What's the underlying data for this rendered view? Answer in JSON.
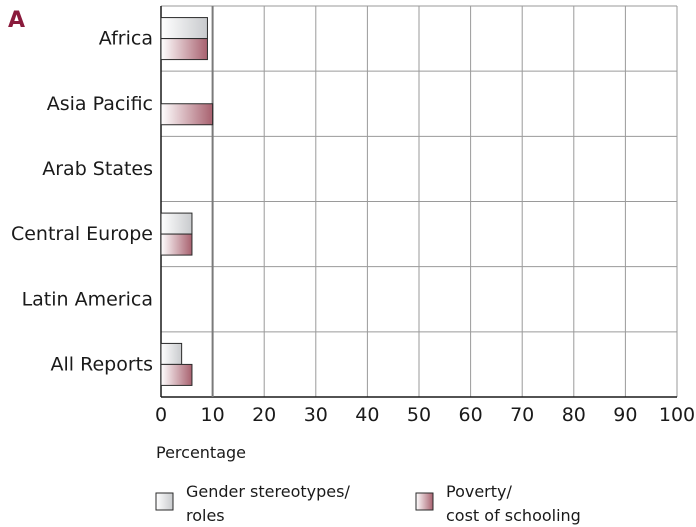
{
  "panel_label": "A",
  "chart_data": {
    "type": "bar",
    "orientation": "horizontal",
    "categories": [
      "Africa",
      "Asia Pacific",
      "Arab States",
      "Central Europe",
      "Latin America",
      "All Reports"
    ],
    "series": [
      {
        "name": "Gender stereotypes/ roles",
        "label_lines": [
          "Gender stereotypes/",
          "roles"
        ],
        "values": [
          9,
          0,
          0,
          6,
          0,
          4
        ],
        "colors": [
          "#ffffff",
          "#c8cacd"
        ]
      },
      {
        "name": "Poverty/ cost of schooling",
        "label_lines": [
          "Poverty/",
          "cost of schooling"
        ],
        "values": [
          9,
          10,
          0,
          6,
          0,
          6
        ],
        "colors": [
          "#ffffff",
          "#a8616f"
        ]
      }
    ],
    "xlabel": "Percentage",
    "xlim": [
      0,
      100
    ],
    "xticks": [
      0,
      10,
      20,
      30,
      40,
      50,
      60,
      70,
      80,
      90,
      100
    ],
    "grid": true,
    "legend_position": "bottom"
  }
}
